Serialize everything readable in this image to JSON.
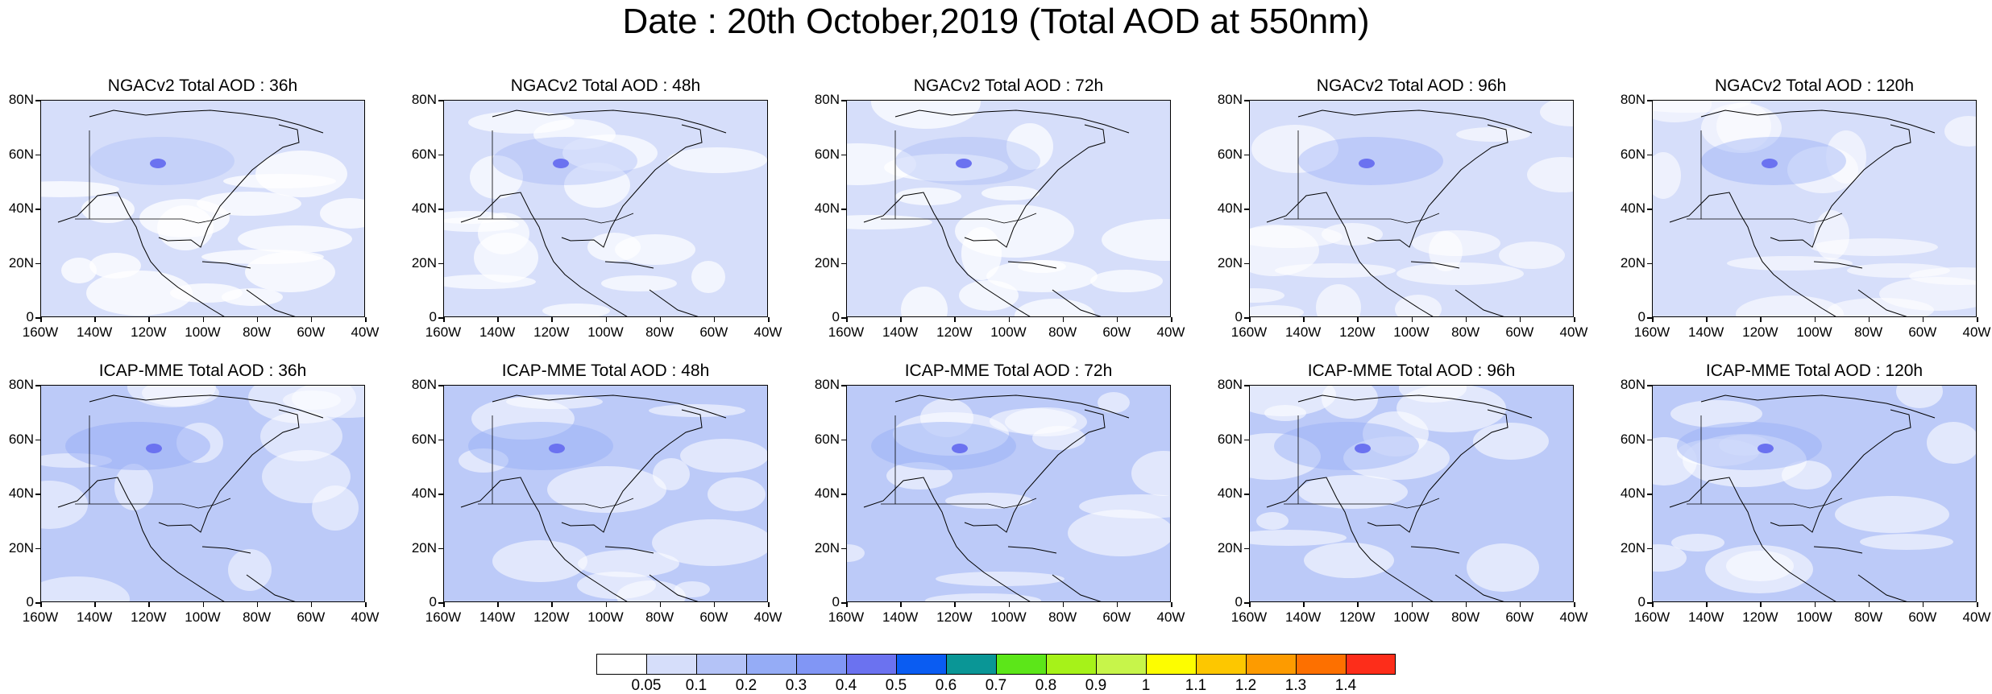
{
  "title": "Date : 20th October,2019 (Total AOD at 550nm)",
  "panels": [
    {
      "title": "NGACv2 Total AOD : 36h",
      "model": "NGACv2",
      "lead": "36h",
      "intensity": 0.28
    },
    {
      "title": "NGACv2 Total AOD : 48h",
      "model": "NGACv2",
      "lead": "48h",
      "intensity": 0.35
    },
    {
      "title": "NGACv2 Total AOD : 72h",
      "model": "NGACv2",
      "lead": "72h",
      "intensity": 0.32
    },
    {
      "title": "NGACv2 Total AOD : 96h",
      "model": "NGACv2",
      "lead": "96h",
      "intensity": 0.42
    },
    {
      "title": "NGACv2 Total AOD : 120h",
      "model": "NGACv2",
      "lead": "120h",
      "intensity": 0.45
    },
    {
      "title": "ICAP-MME Total AOD : 36h",
      "model": "ICAP-MME",
      "lead": "36h",
      "intensity": 0.55
    },
    {
      "title": "ICAP-MME Total AOD : 48h",
      "model": "ICAP-MME",
      "lead": "48h",
      "intensity": 0.5
    },
    {
      "title": "ICAP-MME Total AOD : 72h",
      "model": "ICAP-MME",
      "lead": "72h",
      "intensity": 0.5
    },
    {
      "title": "ICAP-MME Total AOD : 96h",
      "model": "ICAP-MME",
      "lead": "96h",
      "intensity": 0.48
    },
    {
      "title": "ICAP-MME Total AOD : 120h",
      "model": "ICAP-MME",
      "lead": "120h",
      "intensity": 0.48
    }
  ],
  "lat_labels": [
    "80N",
    "60N",
    "40N",
    "20N",
    "0"
  ],
  "lon_labels": [
    "160W",
    "140W",
    "120W",
    "100W",
    "80W",
    "60W",
    "40W"
  ],
  "colorbar": {
    "colors": [
      "#ffffff",
      "#d6defa",
      "#b4c3f7",
      "#95acf6",
      "#8196f5",
      "#6b72f0",
      "#0a5cf2",
      "#0a9696",
      "#5ce619",
      "#a6f219",
      "#c7f54a",
      "#fdfd00",
      "#fdc700",
      "#fd9b00",
      "#fd7000",
      "#fd2d1a"
    ],
    "labels": [
      "0.05",
      "0.1",
      "0.2",
      "0.3",
      "0.4",
      "0.5",
      "0.6",
      "0.7",
      "0.8",
      "0.9",
      "1",
      "1.1",
      "1.2",
      "1.3",
      "1.4"
    ]
  }
}
